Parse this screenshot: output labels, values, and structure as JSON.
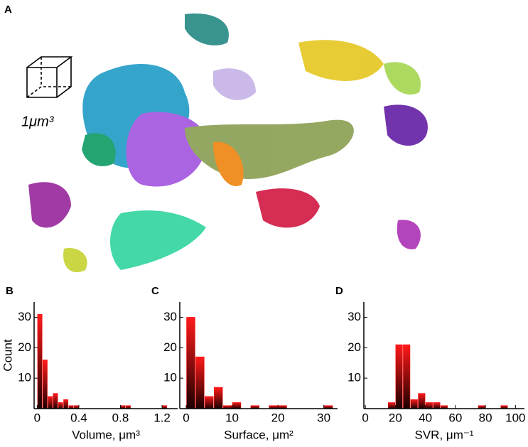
{
  "panel_a": {
    "label": "A",
    "scale_label": "1μm³"
  },
  "chart_data": [
    {
      "type": "histogram",
      "panel_label": "B",
      "xlabel": "Volume, μm³",
      "ylabel": "Count",
      "color": "#ff0000",
      "bins": [
        0,
        0.05,
        0.1,
        0.15,
        0.2,
        0.25,
        0.3,
        0.35,
        0.4,
        0.45,
        0.5,
        0.55,
        0.6,
        0.65,
        0.7,
        0.75,
        0.8,
        0.85,
        0.9,
        0.95,
        1.0,
        1.05,
        1.1,
        1.15,
        1.2,
        1.25
      ],
      "values": [
        31,
        16,
        4,
        5,
        2,
        3,
        1,
        1,
        0,
        0,
        0,
        0,
        0,
        0,
        0,
        0,
        1,
        1,
        0,
        0,
        0,
        0,
        0,
        0,
        1
      ],
      "xlim": [
        -0.03,
        1.35
      ],
      "ylim": [
        0,
        35
      ],
      "xticks": [
        0,
        0.4,
        0.8,
        1.2
      ],
      "yticks": [
        10,
        20,
        30
      ]
    },
    {
      "type": "histogram",
      "panel_label": "C",
      "xlabel": "Surface, μm²",
      "color": "#ff0000",
      "bins": [
        0,
        2,
        4,
        6,
        8,
        10,
        12,
        14,
        16,
        18,
        20,
        22,
        24,
        26,
        28,
        30,
        32
      ],
      "values": [
        30,
        17,
        4,
        7,
        1,
        2,
        0,
        1,
        0,
        1,
        1,
        0,
        0,
        0,
        0,
        1
      ],
      "xlim": [
        -1.4,
        33
      ],
      "ylim": [
        0,
        35
      ],
      "xticks": [
        0,
        10,
        20,
        30
      ],
      "yticks": [
        10,
        20,
        30
      ]
    },
    {
      "type": "histogram",
      "panel_label": "D",
      "xlabel": "SVR, μm⁻¹",
      "color": "#ff0000",
      "bins": [
        15,
        20,
        25,
        30,
        35,
        40,
        45,
        50,
        55,
        60,
        65,
        70,
        75,
        80,
        85,
        90,
        95
      ],
      "values": [
        2,
        21,
        21,
        3,
        5,
        2,
        2,
        1,
        0,
        0,
        0,
        0,
        1,
        0,
        0,
        1
      ],
      "xlim": [
        -1,
        106
      ],
      "ylim": [
        0,
        35
      ],
      "xticks": [
        0,
        20,
        40,
        60,
        80,
        100
      ],
      "yticks": [
        10,
        20,
        30
      ]
    }
  ]
}
